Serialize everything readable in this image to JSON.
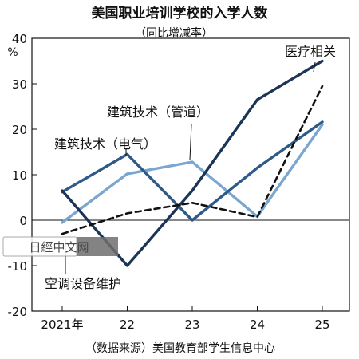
{
  "chart_data": {
    "type": "line",
    "title": "美国职业培训学校的入学人数",
    "subtitle": "（同比增减率）",
    "yunit": "%",
    "x": [
      "2021年",
      "22",
      "23",
      "24",
      "25"
    ],
    "ylim": [
      -20,
      40
    ],
    "yticks": [
      40,
      30,
      20,
      10,
      0,
      -10,
      -20
    ],
    "grid": false,
    "series": [
      {
        "name": "医疗相关",
        "values": [
          -3.0,
          1.5,
          3.8,
          0.7,
          29.5
        ],
        "color": "#111111",
        "style": "dashed"
      },
      {
        "name": "建筑技术（管道）",
        "values": [
          -0.5,
          10.2,
          12.8,
          0.8,
          21.0
        ],
        "color": "#7aa6d0",
        "style": "solid"
      },
      {
        "name": "建筑技术（电气）",
        "values": [
          6.2,
          14.5,
          0.0,
          11.5,
          21.6
        ],
        "color": "#2e5a88",
        "style": "solid"
      },
      {
        "name": "空调设备维护",
        "values": [
          6.5,
          -10.0,
          6.5,
          26.5,
          35.0
        ],
        "color": "#1c3557",
        "style": "solid"
      }
    ],
    "source": "（数据来源）美国教育部学生信息中心"
  },
  "watermark": "日經中文网"
}
